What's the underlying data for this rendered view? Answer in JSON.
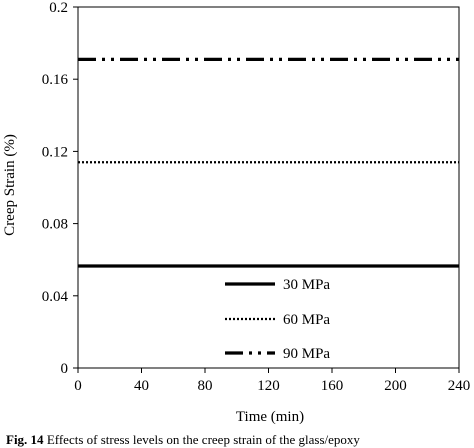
{
  "chart_data": {
    "type": "line",
    "title": "",
    "xlabel": "Time (min)",
    "ylabel": "Creep Strain (%)",
    "xlim": [
      0,
      240
    ],
    "ylim": [
      0,
      0.2
    ],
    "x_ticks": [
      0,
      40,
      80,
      120,
      160,
      200,
      240
    ],
    "y_ticks": [
      0,
      0.04,
      0.08,
      0.12,
      0.16,
      0.2
    ],
    "y_tick_labels": [
      "0",
      "0.04",
      "0.08",
      "0.12",
      "0.16",
      "0.2"
    ],
    "grid": false,
    "legend_position": "lower-right",
    "series": [
      {
        "name": "30 MPa",
        "line_style": "solid",
        "x": [
          0,
          240
        ],
        "y": [
          0.0565,
          0.0565
        ]
      },
      {
        "name": "60 MPa",
        "line_style": "dotted",
        "x": [
          0,
          240
        ],
        "y": [
          0.114,
          0.114
        ]
      },
      {
        "name": "90 MPa",
        "line_style": "dash-dot-dot",
        "x": [
          0,
          240
        ],
        "y": [
          0.171,
          0.171
        ]
      }
    ]
  },
  "caption": {
    "prefix": "Fig. 14",
    "text": " Effects of stress levels on the creep strain of the glass/epoxy"
  }
}
